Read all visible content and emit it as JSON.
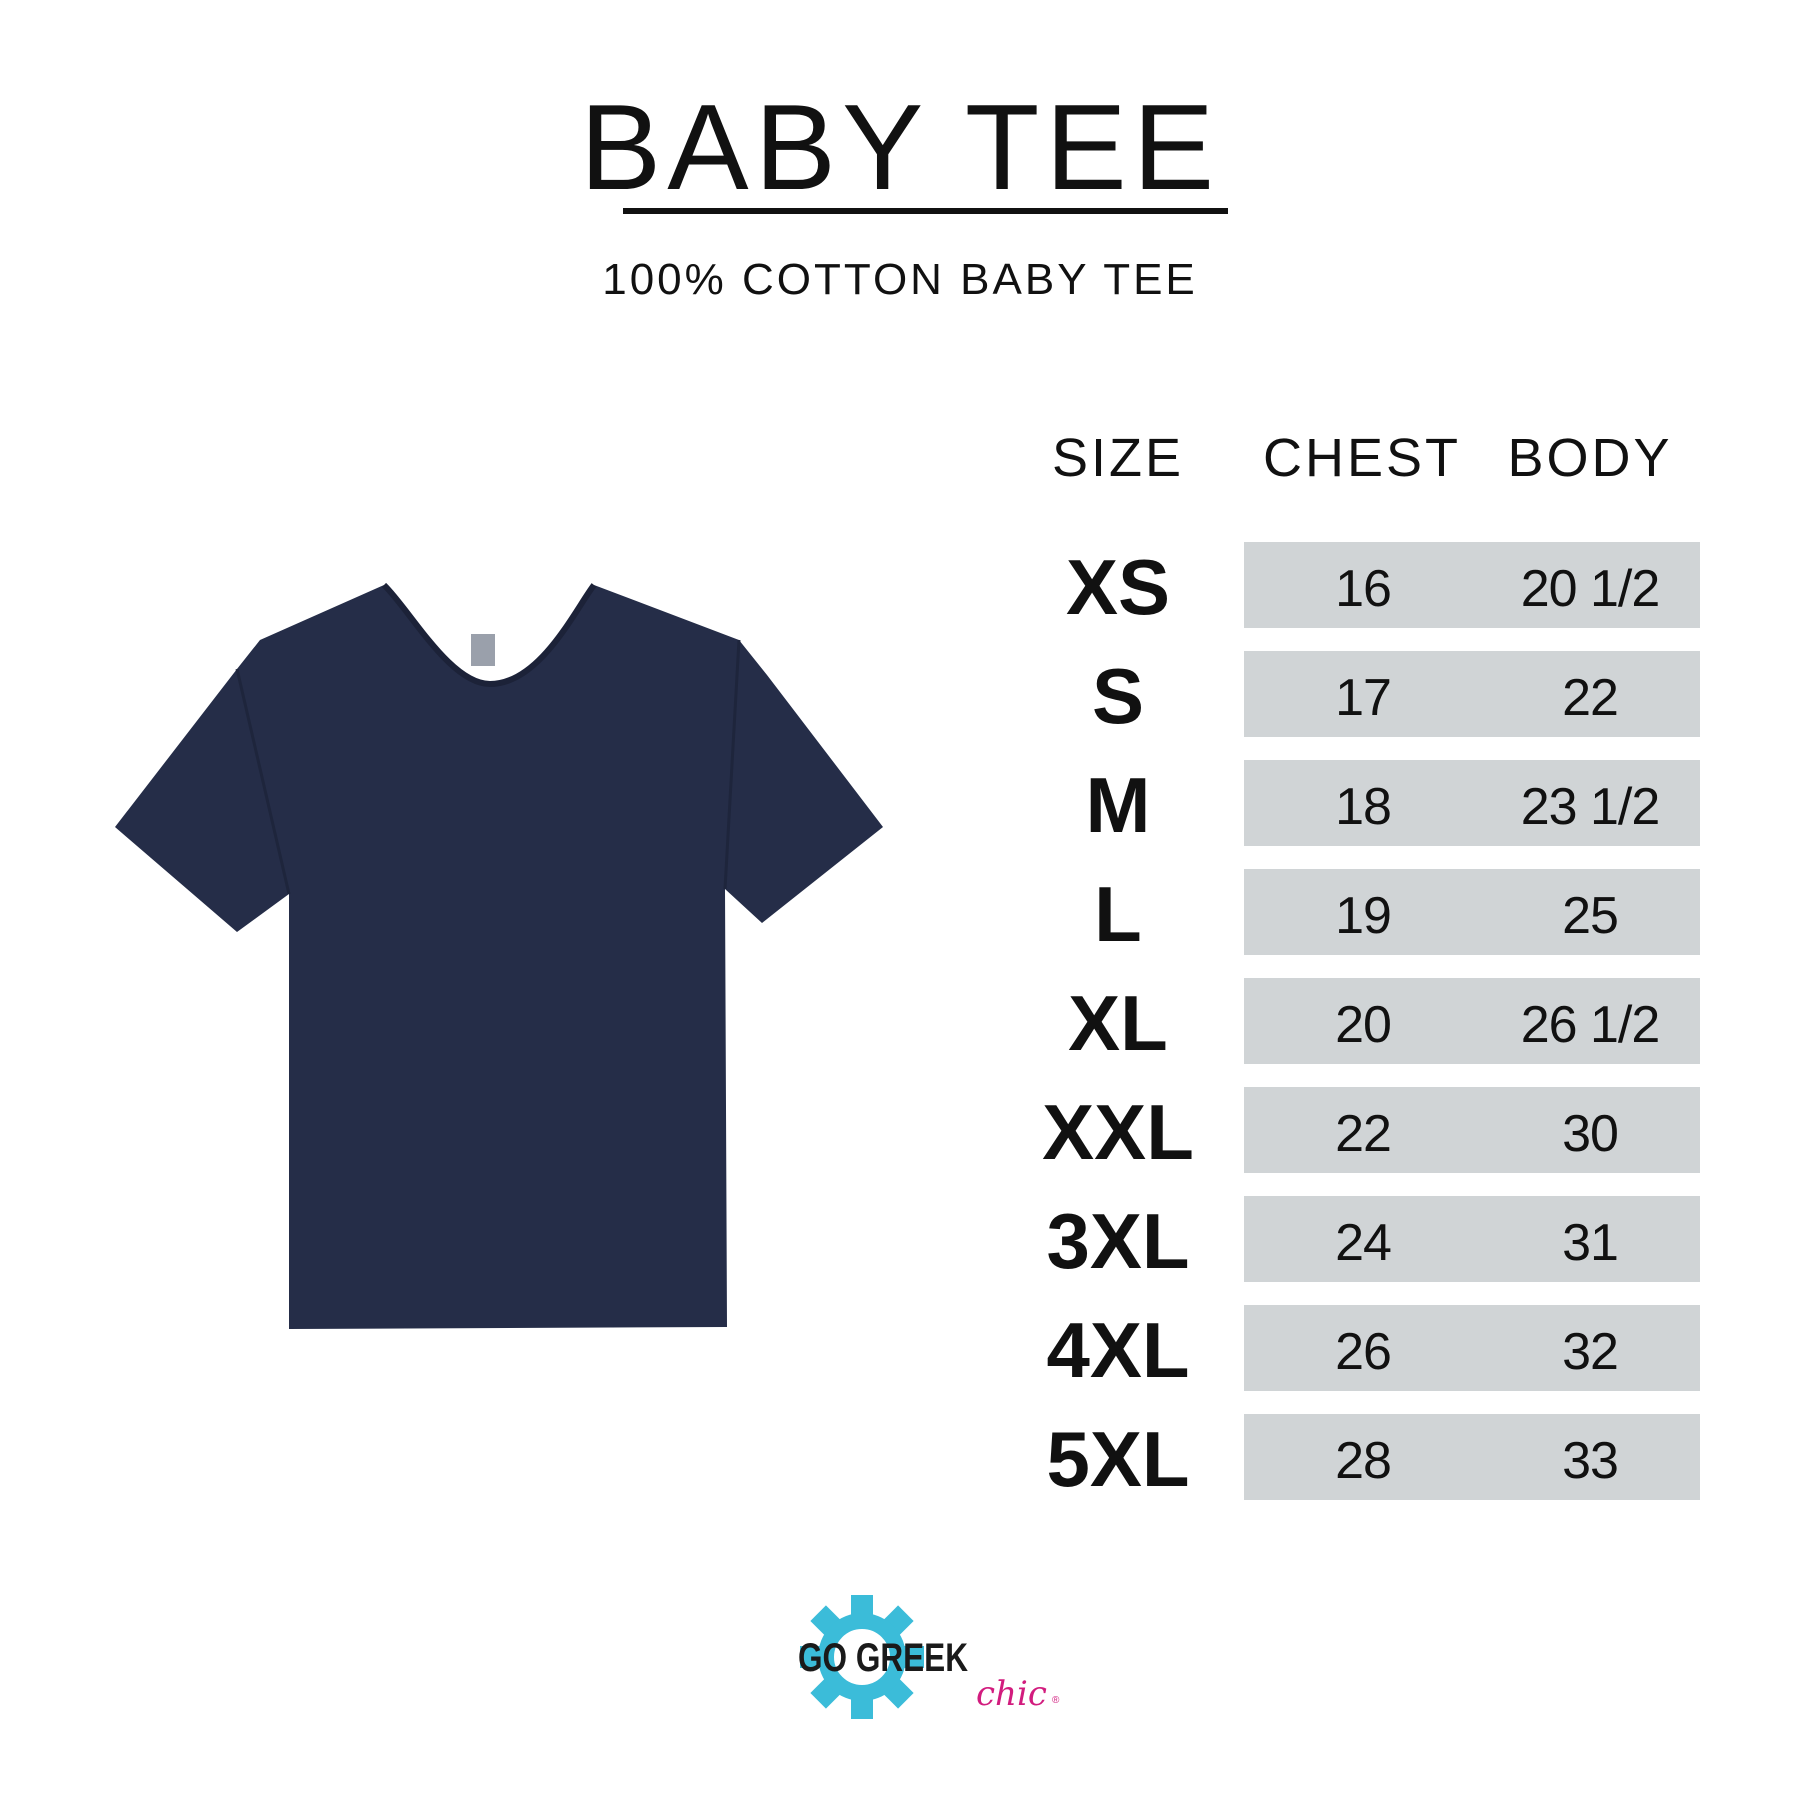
{
  "header": {
    "title": "BABY TEE",
    "subtitle": "100% COTTON BABY TEE"
  },
  "product_image": {
    "garment": "t-shirt",
    "color": "#252d48"
  },
  "size_chart": {
    "columns": [
      "SIZE",
      "CHEST",
      "BODY"
    ],
    "rows": [
      {
        "size": "XS",
        "chest": "16",
        "body": "20 1/2"
      },
      {
        "size": "S",
        "chest": "17",
        "body": "22"
      },
      {
        "size": "M",
        "chest": "18",
        "body": "23 1/2"
      },
      {
        "size": "L",
        "chest": "19",
        "body": "25"
      },
      {
        "size": "XL",
        "chest": "20",
        "body": "26 1/2"
      },
      {
        "size": "XXL",
        "chest": "22",
        "body": "30"
      },
      {
        "size": "3XL",
        "chest": "24",
        "body": "31"
      },
      {
        "size": "4XL",
        "chest": "26",
        "body": "32"
      },
      {
        "size": "5XL",
        "chest": "28",
        "body": "33"
      }
    ],
    "cell_color": "#d0d4d6"
  },
  "logo": {
    "text_main": "GO GREEK",
    "text_script": "chic",
    "mark": "®",
    "gear_color": "#3bbcd9",
    "script_color": "#d21c7e"
  }
}
